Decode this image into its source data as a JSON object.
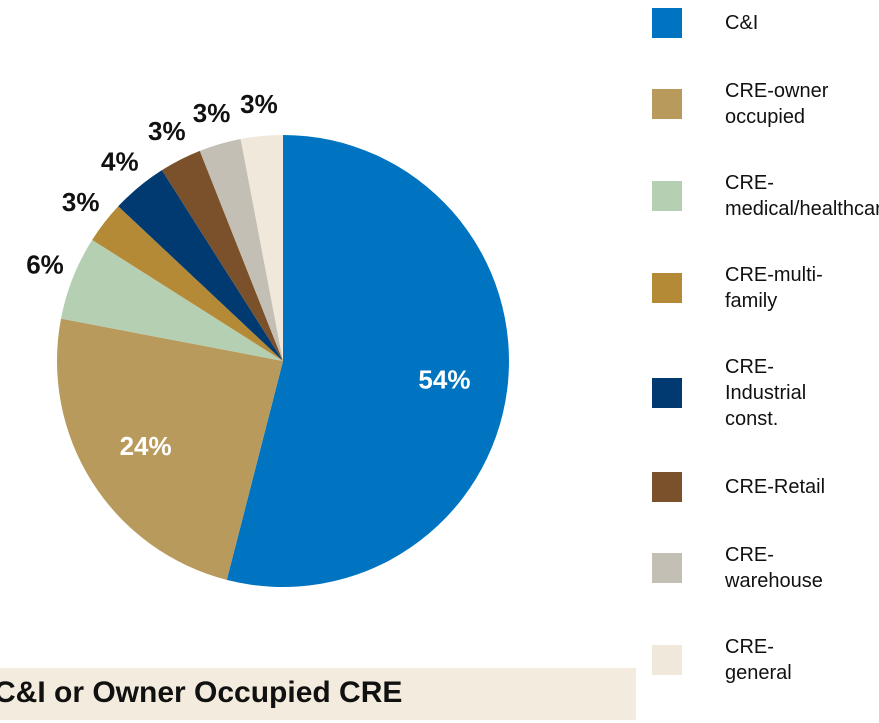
{
  "chart_data": {
    "type": "pie",
    "categories": [
      "C&I",
      "CRE-owner occupied",
      "CRE-medical/healthcare",
      "CRE-multi-family",
      "CRE-Industrial const.",
      "CRE-Retail",
      "CRE-warehouse",
      "CRE-general"
    ],
    "values": [
      54,
      24,
      6,
      3,
      4,
      3,
      3,
      3
    ],
    "value_labels": [
      "54%",
      "24%",
      "6%",
      "3%",
      "4%",
      "3%",
      "3%",
      "3%"
    ],
    "colors": [
      "#0074c0",
      "#b89a5c",
      "#b5cfb3",
      "#b48a36",
      "#003a70",
      "#7a512b",
      "#c4bfb4",
      "#f0e8da"
    ],
    "legend": "right",
    "caption": "C&I or Owner Occupied CRE"
  }
}
